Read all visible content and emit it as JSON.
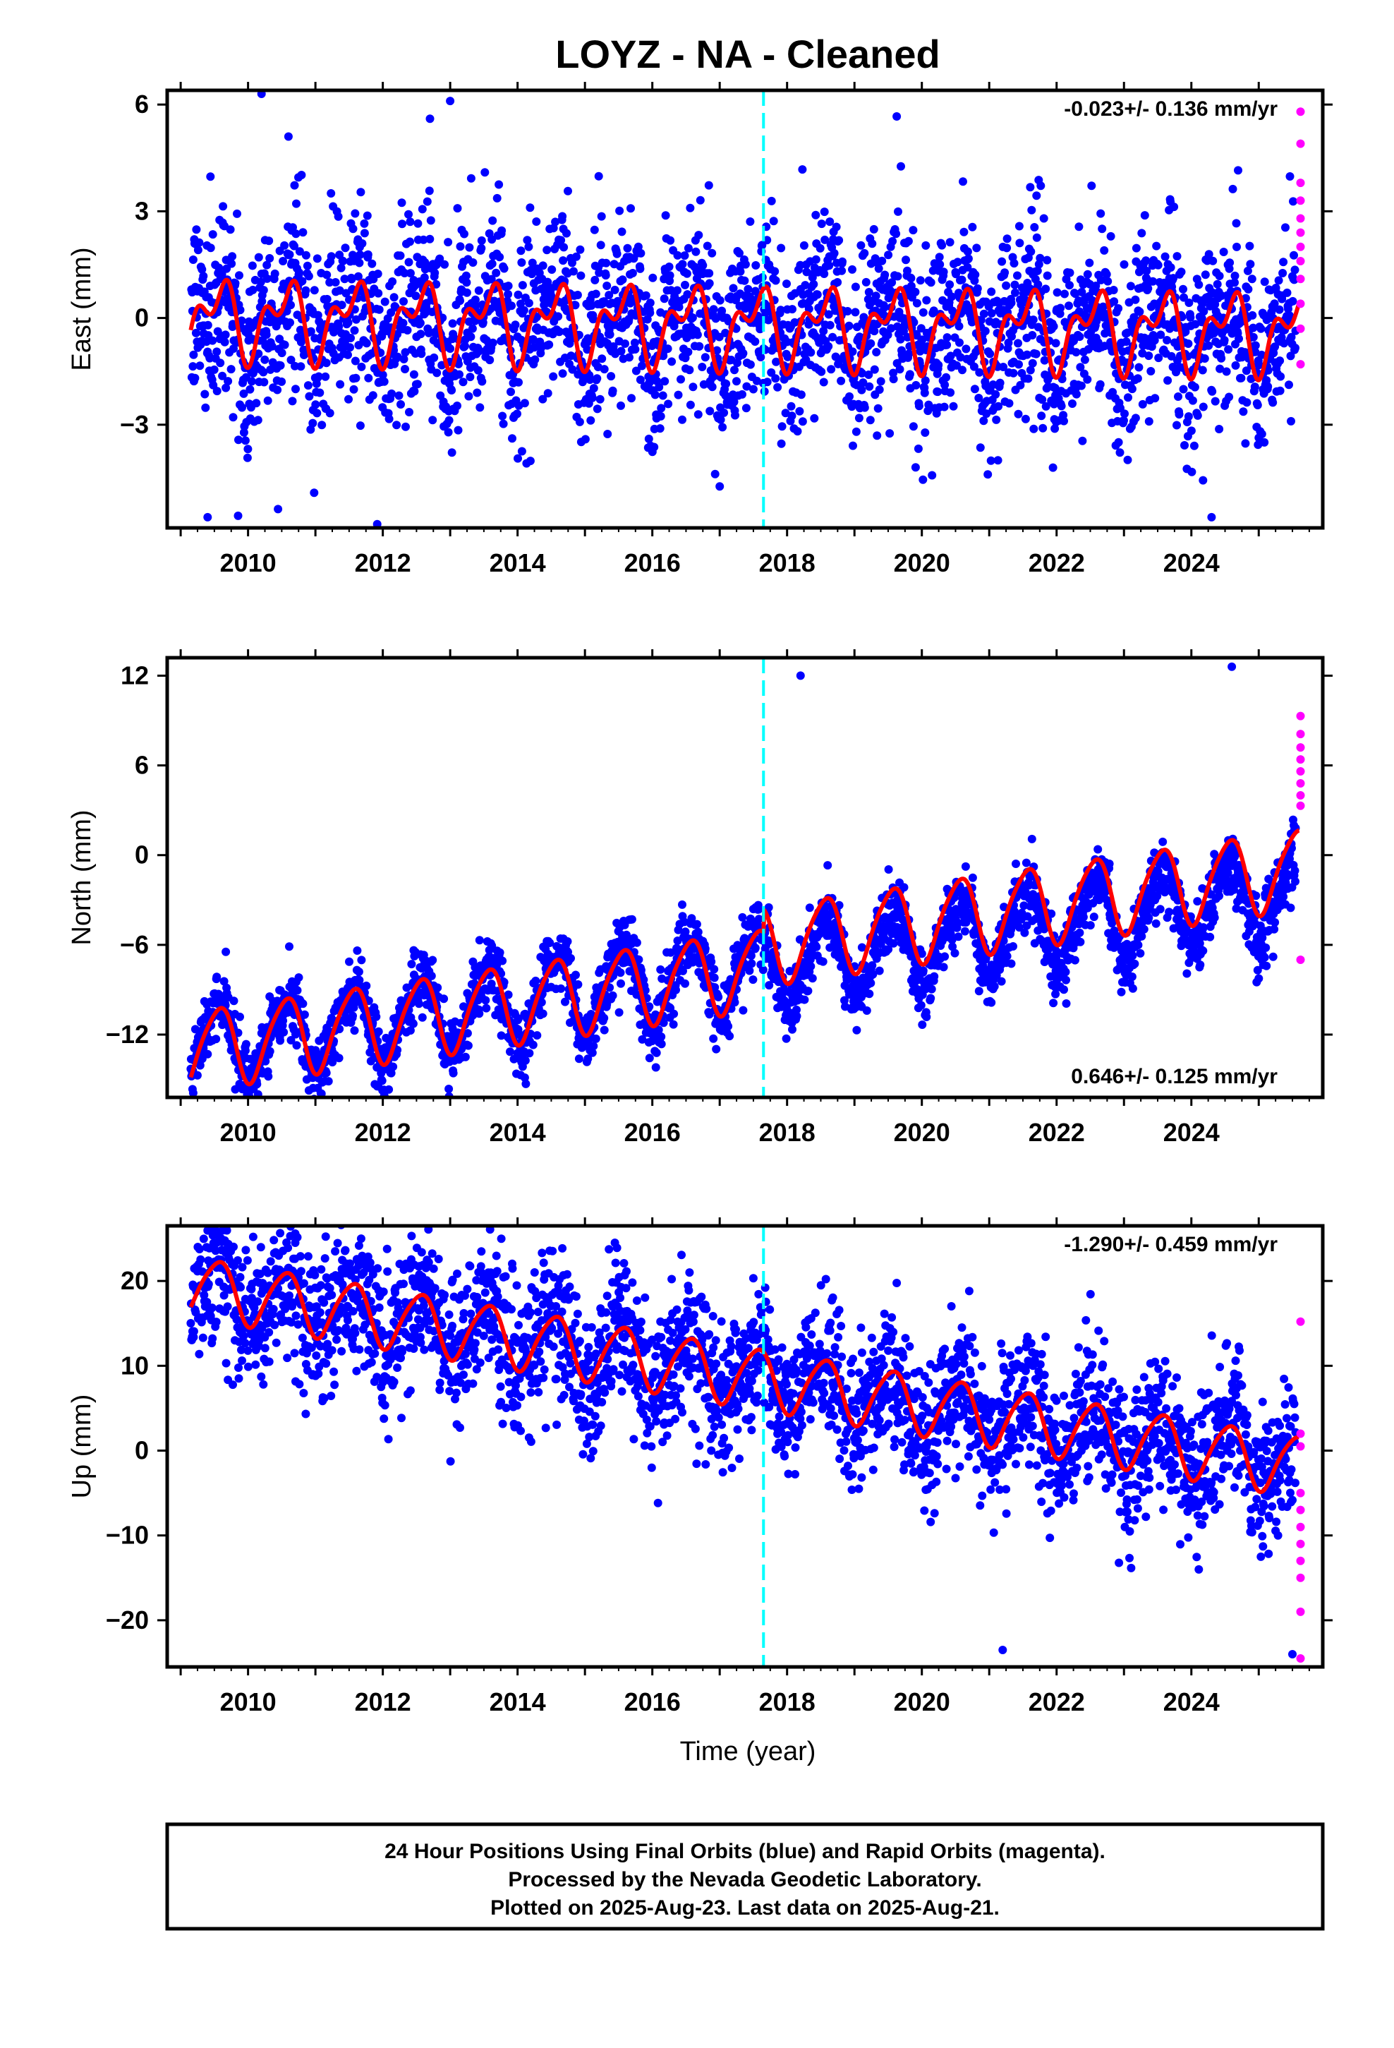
{
  "chart_data": {
    "type": "scatter",
    "title": "LOYZ  - NA - Cleaned",
    "xlabel": "Time (year)",
    "xlim": [
      2008.8,
      2025.95
    ],
    "x_ticks": [
      2010,
      2012,
      2014,
      2016,
      2018,
      2020,
      2022,
      2024
    ],
    "x_tick_labels": [
      "2010",
      "2012",
      "2014",
      "2016",
      "2018",
      "2020",
      "2022",
      "2024"
    ],
    "vertical_marker_year": 2017.65,
    "colors": {
      "final_orbits": "#0000ff",
      "rapid_orbits": "#ff00ff",
      "model_fit": "#ff0000",
      "marker_line": "#00ffff",
      "frame": "#000000"
    },
    "panels": [
      {
        "ylabel": "East (mm)",
        "ylim": [
          -5.9,
          6.4
        ],
        "y_ticks": [
          -3,
          0,
          3,
          6
        ],
        "y_tick_labels": [
          "−3",
          "0",
          "3",
          "6"
        ],
        "rate_text": "-0.023+/- 0.136 mm/yr",
        "rate_position": "top-right",
        "final_series": {
          "start": 2009.15,
          "end": 2025.55,
          "rate": -0.023,
          "offset": -0.2,
          "annual": 0.85,
          "semiannual": 0.6,
          "noise": 1.3,
          "spread_years": [],
          "extremes": [
            [
              2010.2,
              6.3
            ],
            [
              2013.0,
              6.1
            ],
            [
              2012.7,
              5.6
            ],
            [
              2010.6,
              5.1
            ],
            [
              2024.3,
              -5.6
            ],
            [
              2009.4,
              -5.6
            ]
          ]
        },
        "fit_series": {
          "rate": -0.023,
          "offset": -0.2,
          "annual": 0.85,
          "semiannual": 0.6,
          "offset_step": 0
        },
        "rapid_values": [
          5.8,
          4.9,
          3.8,
          3.3,
          2.8,
          2.4,
          2.0,
          1.6,
          1.1,
          0.4,
          -0.3,
          -1.3
        ]
      },
      {
        "ylabel": "North (mm)",
        "ylim": [
          -16.2,
          13.2
        ],
        "y_ticks": [
          -12,
          -6,
          0,
          6,
          12
        ],
        "y_tick_labels": [
          "−12",
          "−6",
          "0",
          "6",
          "12"
        ],
        "rate_text": "0.646+/- 0.125 mm/yr",
        "rate_position": "bottom-right",
        "final_series": {
          "start": 2009.15,
          "end": 2025.55,
          "rate": 0.646,
          "offset": -7.5,
          "annual": 2.6,
          "semiannual": 0.4,
          "noise": 1.1,
          "spread_years": [],
          "extremes": [
            [
              2018.2,
              12.0
            ],
            [
              2024.6,
              12.6
            ],
            [
              2009.9,
              -14.3
            ],
            [
              2010.3,
              -14.8
            ]
          ]
        },
        "fit_series": {
          "rate": 0.646,
          "offset": -7.5,
          "annual": 2.6,
          "semiannual": 0.4,
          "offset_step": 4.4
        },
        "rapid_values": [
          9.3,
          8.1,
          7.2,
          6.4,
          5.6,
          4.8,
          4.0,
          3.3,
          -7.0
        ]
      },
      {
        "ylabel": "Up (mm)",
        "ylim": [
          -25.5,
          26.5
        ],
        "y_ticks": [
          -20,
          -10,
          0,
          10,
          20
        ],
        "y_tick_labels": [
          "−20",
          "−10",
          "0",
          "10",
          "20"
        ],
        "rate_text": "-1.290+/- 0.459 mm/yr",
        "rate_position": "top-right",
        "final_series": {
          "start": 2009.15,
          "end": 2025.55,
          "rate": -1.29,
          "offset": 8.5,
          "annual": 3.5,
          "semiannual": 0.5,
          "noise": 4.2,
          "spread_years": [],
          "extremes": [
            [
              2009.6,
              25.0
            ],
            [
              2009.7,
              24.0
            ],
            [
              2010.7,
              24.5
            ],
            [
              2025.5,
              -24.0
            ],
            [
              2021.2,
              -23.5
            ]
          ]
        },
        "fit_series": {
          "rate": -1.29,
          "offset": 8.5,
          "annual": 3.5,
          "semiannual": 0.5,
          "offset_step": 0
        },
        "rapid_values": [
          15.2,
          2.0,
          0.5,
          -5.0,
          -7.0,
          -9.0,
          -11.0,
          -13.0,
          -15.0,
          -19.0,
          -24.5
        ]
      }
    ]
  },
  "footer": {
    "line1": "24 Hour Positions Using Final Orbits (blue) and Rapid Orbits (magenta).",
    "line2": "Processed by the Nevada Geodetic Laboratory.",
    "line3": "Plotted on 2025-Aug-23. Last data on 2025-Aug-21."
  }
}
